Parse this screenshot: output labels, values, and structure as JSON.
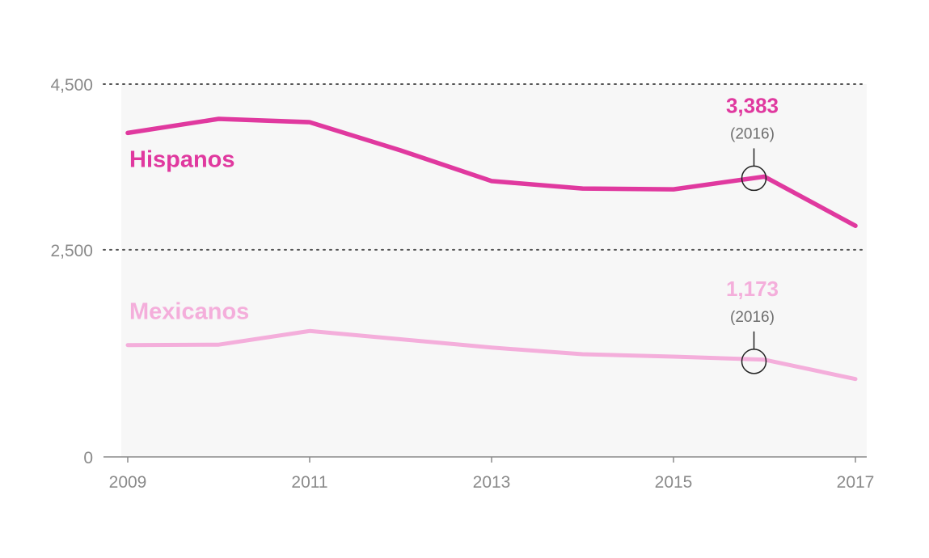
{
  "chart_data": {
    "type": "line",
    "title": "",
    "xlabel": "",
    "ylabel": "",
    "x": [
      2009,
      2010,
      2011,
      2012,
      2013,
      2014,
      2015,
      2016,
      2017
    ],
    "x_ticks": [
      "2009",
      "2011",
      "2013",
      "2015",
      "2017"
    ],
    "y_ticks": [
      "4,500",
      "2,500",
      "0"
    ],
    "y_tick_values": [
      4500,
      2500,
      0
    ],
    "ylim": [
      0,
      4500
    ],
    "grid": "dotted horizontal",
    "series": [
      {
        "name": "Hispanos",
        "color": "#e0399f",
        "values": [
          3910,
          4080,
          4040,
          3700,
          3330,
          3240,
          3230,
          3383,
          2790
        ],
        "callout": {
          "value": "3,383",
          "note": "(2016)",
          "x": 2016
        }
      },
      {
        "name": "Mexicanos",
        "color": "#f4aedb",
        "values": [
          1350,
          1355,
          1520,
          1420,
          1320,
          1240,
          1210,
          1173,
          940
        ],
        "callout": {
          "value": "1,173",
          "note": "(2016)",
          "x": 2016
        }
      }
    ]
  }
}
